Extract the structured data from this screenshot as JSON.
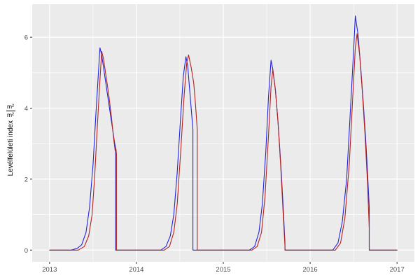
{
  "chart_data": {
    "type": "line",
    "title": "",
    "xlabel": "",
    "ylabel": "Levélfelületi index",
    "ylabel_unit_numerator": "m²",
    "ylabel_unit_denominator": "m²",
    "xlim": [
      2012.8,
      2017.2
    ],
    "ylim": [
      -0.33,
      6.93
    ],
    "x_ticks": [
      2013,
      2014,
      2015,
      2016,
      2017
    ],
    "x_tick_labels": [
      "2013",
      "2014",
      "2015",
      "2016",
      "2017"
    ],
    "y_ticks": [
      0,
      2,
      4,
      6
    ],
    "y_tick_labels": [
      "0",
      "2",
      "4",
      "6"
    ],
    "x_minor_ticks": [
      2013.5,
      2014.5,
      2015.5,
      2016.5
    ],
    "y_minor_ticks": [
      1,
      3,
      5
    ],
    "grid": true,
    "legend": "none",
    "panel_bg": "#ebebeb",
    "grid_color": "#ffffff",
    "tick_color": "#333333",
    "tick_label_color": "#4d4d4d",
    "series": [
      {
        "name": "series-blue",
        "color": "#2222dd",
        "points": [
          [
            2013.0,
            0
          ],
          [
            2013.25,
            0
          ],
          [
            2013.32,
            0.05
          ],
          [
            2013.37,
            0.15
          ],
          [
            2013.42,
            0.5
          ],
          [
            2013.46,
            1.2
          ],
          [
            2013.5,
            2.4
          ],
          [
            2013.53,
            3.7
          ],
          [
            2013.56,
            4.9
          ],
          [
            2013.58,
            5.7
          ],
          [
            2013.6,
            5.5
          ],
          [
            2013.63,
            5.0
          ],
          [
            2013.66,
            4.5
          ],
          [
            2013.69,
            4.0
          ],
          [
            2013.72,
            3.5
          ],
          [
            2013.75,
            3.0
          ],
          [
            2013.76,
            2.9
          ],
          [
            2013.76,
            0
          ],
          [
            2014.0,
            0
          ],
          [
            2014.28,
            0
          ],
          [
            2014.34,
            0.1
          ],
          [
            2014.39,
            0.4
          ],
          [
            2014.43,
            1.0
          ],
          [
            2014.47,
            2.2
          ],
          [
            2014.51,
            3.8
          ],
          [
            2014.54,
            4.9
          ],
          [
            2014.57,
            5.45
          ],
          [
            2014.59,
            5.2
          ],
          [
            2014.61,
            4.6
          ],
          [
            2014.63,
            4.0
          ],
          [
            2014.65,
            3.4
          ],
          [
            2014.65,
            0
          ],
          [
            2015.0,
            0
          ],
          [
            2015.3,
            0
          ],
          [
            2015.36,
            0.1
          ],
          [
            2015.41,
            0.5
          ],
          [
            2015.45,
            1.3
          ],
          [
            2015.49,
            2.8
          ],
          [
            2015.52,
            4.3
          ],
          [
            2015.55,
            5.35
          ],
          [
            2015.57,
            5.1
          ],
          [
            2015.6,
            4.5
          ],
          [
            2015.63,
            3.6
          ],
          [
            2015.66,
            2.5
          ],
          [
            2015.69,
            1.2
          ],
          [
            2015.71,
            0.2
          ],
          [
            2015.71,
            0
          ],
          [
            2016.0,
            0
          ],
          [
            2016.26,
            0
          ],
          [
            2016.32,
            0.2
          ],
          [
            2016.37,
            0.8
          ],
          [
            2016.42,
            2.0
          ],
          [
            2016.46,
            3.8
          ],
          [
            2016.5,
            5.6
          ],
          [
            2016.52,
            6.6
          ],
          [
            2016.55,
            6.1
          ],
          [
            2016.58,
            5.2
          ],
          [
            2016.61,
            4.2
          ],
          [
            2016.64,
            3.1
          ],
          [
            2016.66,
            2.2
          ],
          [
            2016.68,
            1.2
          ],
          [
            2016.68,
            0
          ],
          [
            2017.0,
            0
          ]
        ]
      },
      {
        "name": "series-red",
        "color": "#b22222",
        "points": [
          [
            2013.0,
            0
          ],
          [
            2013.33,
            0
          ],
          [
            2013.4,
            0.1
          ],
          [
            2013.45,
            0.4
          ],
          [
            2013.49,
            1.0
          ],
          [
            2013.52,
            2.1
          ],
          [
            2013.55,
            3.5
          ],
          [
            2013.58,
            4.8
          ],
          [
            2013.6,
            5.6
          ],
          [
            2013.62,
            5.4
          ],
          [
            2013.65,
            4.9
          ],
          [
            2013.68,
            4.4
          ],
          [
            2013.71,
            3.8
          ],
          [
            2013.74,
            3.1
          ],
          [
            2013.755,
            2.8
          ],
          [
            2013.765,
            2.85
          ],
          [
            2013.77,
            2.7
          ],
          [
            2013.77,
            0
          ],
          [
            2014.0,
            0
          ],
          [
            2014.32,
            0
          ],
          [
            2014.38,
            0.1
          ],
          [
            2014.43,
            0.5
          ],
          [
            2014.47,
            1.3
          ],
          [
            2014.51,
            2.8
          ],
          [
            2014.55,
            4.4
          ],
          [
            2014.58,
            5.3
          ],
          [
            2014.6,
            5.5
          ],
          [
            2014.63,
            5.15
          ],
          [
            2014.66,
            4.7
          ],
          [
            2014.68,
            4.1
          ],
          [
            2014.7,
            3.4
          ],
          [
            2014.7,
            0
          ],
          [
            2015.0,
            0
          ],
          [
            2015.33,
            0
          ],
          [
            2015.39,
            0.1
          ],
          [
            2015.44,
            0.5
          ],
          [
            2015.48,
            1.5
          ],
          [
            2015.52,
            3.2
          ],
          [
            2015.55,
            4.6
          ],
          [
            2015.57,
            5.1
          ],
          [
            2015.6,
            4.5
          ],
          [
            2015.63,
            3.6
          ],
          [
            2015.66,
            2.4
          ],
          [
            2015.69,
            1.0
          ],
          [
            2015.71,
            0.1
          ],
          [
            2015.71,
            0
          ],
          [
            2016.0,
            0
          ],
          [
            2016.29,
            0
          ],
          [
            2016.35,
            0.2
          ],
          [
            2016.4,
            0.9
          ],
          [
            2016.45,
            2.4
          ],
          [
            2016.49,
            4.3
          ],
          [
            2016.52,
            5.7
          ],
          [
            2016.54,
            6.1
          ],
          [
            2016.57,
            5.5
          ],
          [
            2016.6,
            4.5
          ],
          [
            2016.63,
            3.3
          ],
          [
            2016.66,
            1.9
          ],
          [
            2016.68,
            0.6
          ],
          [
            2016.68,
            0
          ],
          [
            2017.0,
            0
          ]
        ]
      }
    ]
  }
}
